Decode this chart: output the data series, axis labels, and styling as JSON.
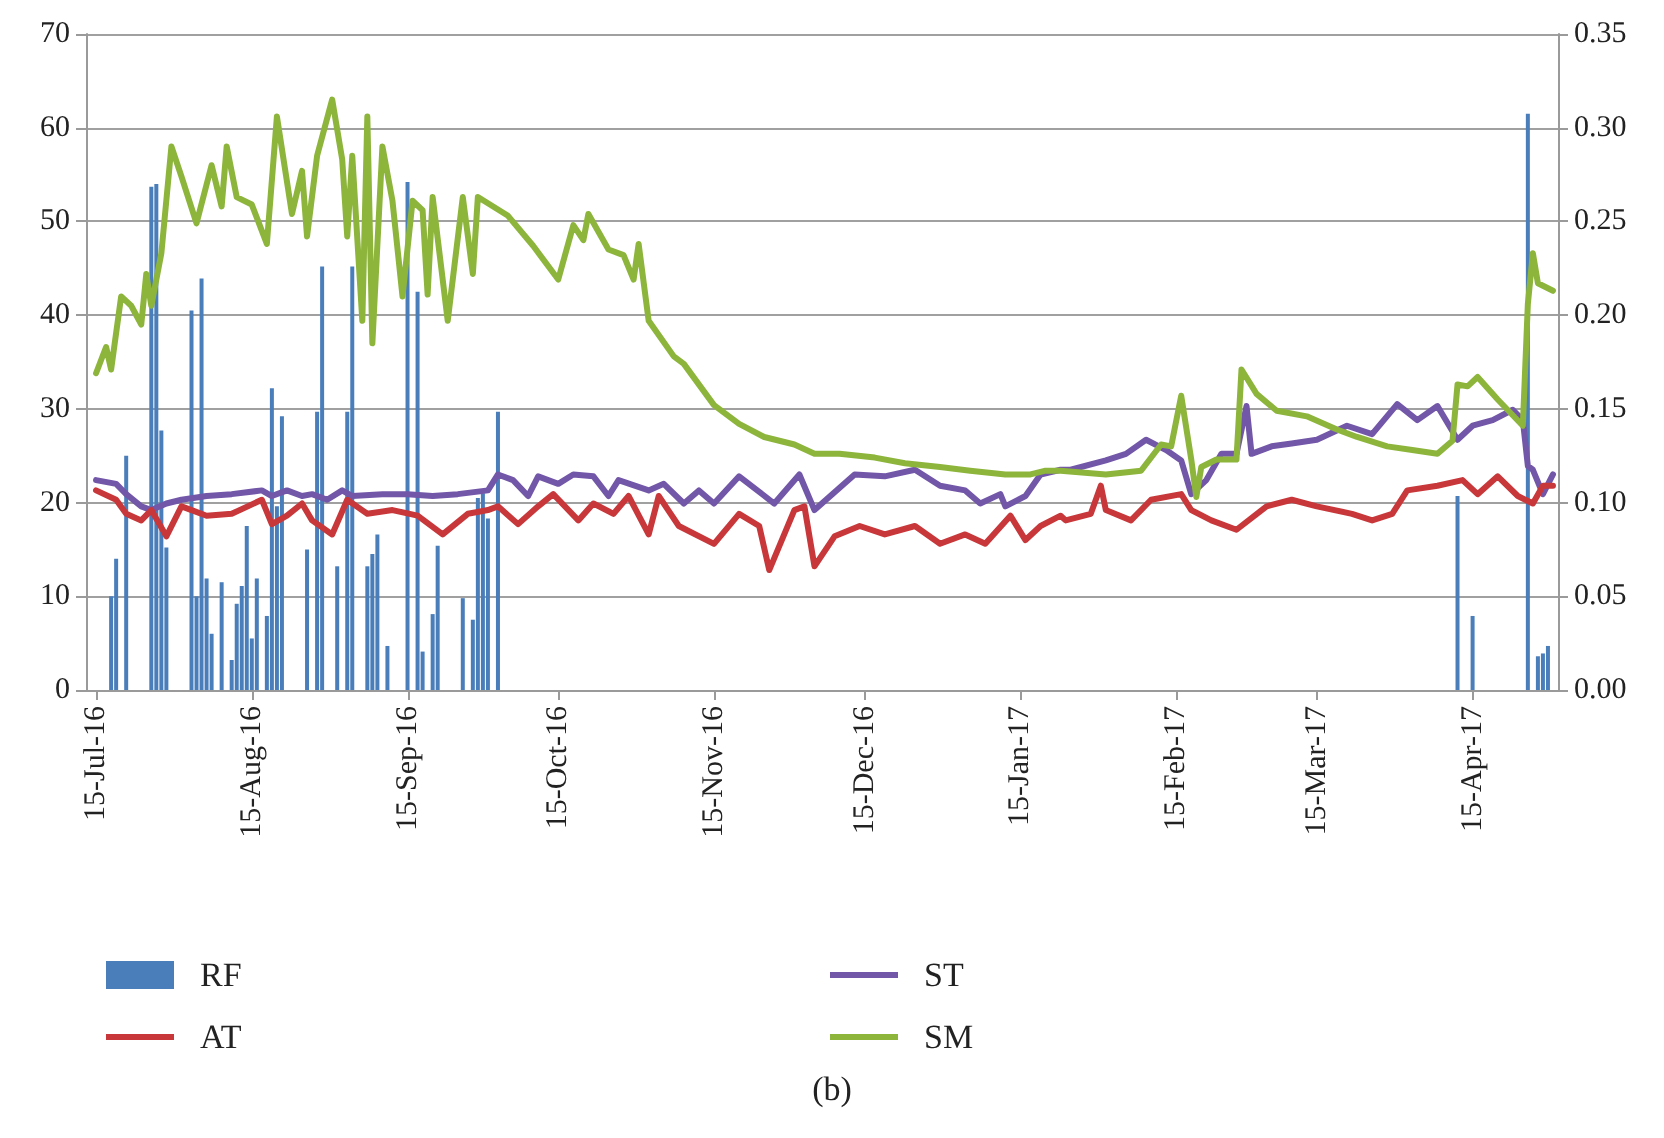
{
  "chart_data": {
    "type": "line",
    "xlim": [
      "2016-07-13",
      "2017-05-02"
    ],
    "xticks": [
      {
        "value": "2016-07-15",
        "label": "15-Jul-16"
      },
      {
        "value": "2016-08-15",
        "label": "15-Aug-16"
      },
      {
        "value": "2016-09-15",
        "label": "15-Sep-16"
      },
      {
        "value": "2016-10-15",
        "label": "15-Oct-16"
      },
      {
        "value": "2016-11-15",
        "label": "15-Nov-16"
      },
      {
        "value": "2016-12-15",
        "label": "15-Dec-16"
      },
      {
        "value": "2017-01-15",
        "label": "15-Jan-17"
      },
      {
        "value": "2017-02-15",
        "label": "15-Feb-17"
      },
      {
        "value": "2017-03-15",
        "label": "15-Mar-17"
      },
      {
        "value": "2017-04-15",
        "label": "15-Apr-17"
      }
    ],
    "ylim": [
      0,
      70
    ],
    "yticks": [
      0,
      10,
      20,
      30,
      40,
      50,
      60,
      70
    ],
    "y2lim": [
      0,
      0.35
    ],
    "y2ticks": [
      {
        "value": 0,
        "label": "0.00"
      },
      0.05,
      {
        "value": 0.1,
        "label": "0.10"
      },
      0.15,
      {
        "value": 0.2,
        "label": "0.20"
      },
      0.25,
      {
        "value": 0.3,
        "label": "0.30"
      },
      0.35
    ],
    "grid": "y",
    "legend": "bottom",
    "marker": "none",
    "line_style": "solid",
    "annotations": [
      "(b)"
    ],
    "series": [
      {
        "name": "RF",
        "type": "bar",
        "color": "#4a7ebb",
        "x": [
          "2016-07-18",
          "2016-07-19",
          "2016-07-21",
          "2016-07-26",
          "2016-07-27",
          "2016-07-28",
          "2016-07-29",
          "2016-08-03",
          "2016-08-04",
          "2016-08-05",
          "2016-08-06",
          "2016-08-07",
          "2016-08-09",
          "2016-08-11",
          "2016-08-12",
          "2016-08-13",
          "2016-08-14",
          "2016-08-15",
          "2016-08-16",
          "2016-08-18",
          "2016-08-19",
          "2016-08-20",
          "2016-08-21",
          "2016-08-26",
          "2016-08-28",
          "2016-08-29",
          "2016-09-01",
          "2016-09-03",
          "2016-09-04",
          "2016-09-07",
          "2016-09-08",
          "2016-09-09",
          "2016-09-11",
          "2016-09-15",
          "2016-09-17",
          "2016-09-18",
          "2016-09-20",
          "2016-09-21",
          "2016-09-26",
          "2016-09-28",
          "2016-09-29",
          "2016-09-30",
          "2016-10-01",
          "2016-10-03",
          "2017-04-12",
          "2017-04-15",
          "2017-04-26",
          "2017-04-28",
          "2017-04-29",
          "2017-04-30"
        ],
        "values": [
          10.0,
          14.0,
          25.0,
          53.7,
          54.0,
          27.7,
          15.2,
          40.5,
          10.0,
          43.9,
          11.9,
          6.0,
          11.5,
          3.2,
          9.2,
          11.1,
          17.5,
          5.5,
          11.9,
          7.9,
          32.2,
          19.6,
          29.2,
          15.0,
          29.7,
          45.2,
          13.2,
          29.7,
          45.2,
          13.2,
          14.5,
          16.6,
          4.7,
          54.2,
          42.5,
          4.1,
          8.1,
          15.4,
          9.8,
          7.5,
          20.5,
          21.0,
          18.3,
          29.7,
          20.7,
          7.9,
          61.5,
          3.6,
          3.9,
          4.7
        ]
      },
      {
        "name": "ST",
        "color": "#7256a8",
        "x": [
          "2016-07-15",
          "2016-07-19",
          "2016-07-21",
          "2016-07-24",
          "2016-07-26",
          "2016-07-29",
          "2016-08-01",
          "2016-08-06",
          "2016-08-11",
          "2016-08-17",
          "2016-08-19",
          "2016-08-22",
          "2016-08-25",
          "2016-08-27",
          "2016-08-30",
          "2016-09-02",
          "2016-09-04",
          "2016-09-10",
          "2016-09-15",
          "2016-09-20",
          "2016-09-25",
          "2016-10-01",
          "2016-10-03",
          "2016-10-06",
          "2016-10-09",
          "2016-10-11",
          "2016-10-15",
          "2016-10-18",
          "2016-10-22",
          "2016-10-25",
          "2016-10-27",
          "2016-11-02",
          "2016-11-05",
          "2016-11-09",
          "2016-11-12",
          "2016-11-15",
          "2016-11-20",
          "2016-11-27",
          "2016-12-02",
          "2016-12-05",
          "2016-12-13",
          "2016-12-19",
          "2016-12-25",
          "2016-12-30",
          "2017-01-04",
          "2017-01-07",
          "2017-01-11",
          "2017-01-12",
          "2017-01-16",
          "2017-01-19",
          "2017-01-23",
          "2017-01-25",
          "2017-02-01",
          "2017-02-05",
          "2017-02-09",
          "2017-02-13",
          "2017-02-16",
          "2017-02-18",
          "2017-02-21",
          "2017-02-24",
          "2017-02-27",
          "2017-03-01",
          "2017-03-02",
          "2017-03-06",
          "2017-03-10",
          "2017-03-15",
          "2017-03-21",
          "2017-03-26",
          "2017-03-31",
          "2017-04-04",
          "2017-04-08",
          "2017-04-12",
          "2017-04-15",
          "2017-04-19",
          "2017-04-23",
          "2017-04-25",
          "2017-04-26",
          "2017-04-27",
          "2017-04-29",
          "2017-05-01"
        ],
        "values": [
          22.4,
          22.0,
          20.9,
          19.6,
          19.2,
          19.9,
          20.3,
          20.7,
          20.9,
          21.3,
          20.7,
          21.3,
          20.7,
          20.9,
          20.3,
          21.3,
          20.7,
          20.9,
          20.9,
          20.7,
          20.9,
          21.3,
          23.0,
          22.4,
          20.7,
          22.8,
          22.0,
          23.0,
          22.8,
          20.7,
          22.4,
          21.3,
          22.0,
          19.9,
          21.3,
          19.9,
          22.8,
          19.9,
          23.0,
          19.2,
          23.0,
          22.8,
          23.5,
          21.8,
          21.3,
          19.9,
          20.9,
          19.6,
          20.7,
          23.0,
          23.5,
          23.5,
          24.5,
          25.2,
          26.7,
          25.6,
          24.5,
          20.9,
          22.4,
          25.2,
          25.2,
          30.3,
          25.2,
          26.0,
          26.3,
          26.7,
          28.2,
          27.3,
          30.5,
          28.8,
          30.3,
          26.7,
          28.2,
          28.8,
          29.9,
          28.8,
          23.9,
          23.5,
          20.9,
          23.0
        ]
      },
      {
        "name": "AT",
        "color": "#c8373a",
        "x": [
          "2016-07-15",
          "2016-07-19",
          "2016-07-21",
          "2016-07-24",
          "2016-07-26",
          "2016-07-29",
          "2016-08-01",
          "2016-08-06",
          "2016-08-11",
          "2016-08-17",
          "2016-08-19",
          "2016-08-22",
          "2016-08-25",
          "2016-08-27",
          "2016-08-31",
          "2016-09-03",
          "2016-09-07",
          "2016-09-12",
          "2016-09-17",
          "2016-09-22",
          "2016-09-27",
          "2016-10-01",
          "2016-10-03",
          "2016-10-07",
          "2016-10-11",
          "2016-10-14",
          "2016-10-19",
          "2016-10-22",
          "2016-10-26",
          "2016-10-29",
          "2016-11-02",
          "2016-11-04",
          "2016-11-08",
          "2016-11-15",
          "2016-11-20",
          "2016-11-24",
          "2016-11-26",
          "2016-12-01",
          "2016-12-03",
          "2016-12-05",
          "2016-12-09",
          "2016-12-14",
          "2016-12-19",
          "2016-12-25",
          "2016-12-30",
          "2017-01-04",
          "2017-01-08",
          "2017-01-13",
          "2017-01-16",
          "2017-01-19",
          "2017-01-23",
          "2017-01-24",
          "2017-01-29",
          "2017-01-31",
          "2017-02-01",
          "2017-02-06",
          "2017-02-10",
          "2017-02-16",
          "2017-02-18",
          "2017-02-22",
          "2017-02-27",
          "2017-03-05",
          "2017-03-10",
          "2017-03-15",
          "2017-03-22",
          "2017-03-26",
          "2017-03-30",
          "2017-04-02",
          "2017-04-08",
          "2017-04-13",
          "2017-04-16",
          "2017-04-20",
          "2017-04-24",
          "2017-04-27",
          "2017-04-29",
          "2017-05-01"
        ],
        "values": [
          21.3,
          20.3,
          18.8,
          18.1,
          19.2,
          16.4,
          19.6,
          18.6,
          18.8,
          20.3,
          17.7,
          18.6,
          19.9,
          18.1,
          16.6,
          20.3,
          18.8,
          19.2,
          18.6,
          16.6,
          18.8,
          19.2,
          19.6,
          17.7,
          19.6,
          20.9,
          18.1,
          19.9,
          18.8,
          20.7,
          16.6,
          20.7,
          17.5,
          15.6,
          18.8,
          17.5,
          12.8,
          19.2,
          19.6,
          13.2,
          16.4,
          17.5,
          16.6,
          17.5,
          15.6,
          16.6,
          15.6,
          18.6,
          16.0,
          17.5,
          18.6,
          18.1,
          18.8,
          21.8,
          19.2,
          18.1,
          20.3,
          20.9,
          19.2,
          18.1,
          17.1,
          19.6,
          20.3,
          19.6,
          18.8,
          18.1,
          18.8,
          21.3,
          21.8,
          22.4,
          20.9,
          22.8,
          20.7,
          19.9,
          21.8,
          21.8
        ]
      },
      {
        "name": "SM",
        "axis": "y2",
        "color": "#8db53c",
        "x": [
          "2016-07-15",
          "2016-07-17",
          "2016-07-18",
          "2016-07-20",
          "2016-07-22",
          "2016-07-24",
          "2016-07-25",
          "2016-07-26",
          "2016-07-28",
          "2016-07-30",
          "2016-08-01",
          "2016-08-04",
          "2016-08-07",
          "2016-08-09",
          "2016-08-10",
          "2016-08-12",
          "2016-08-15",
          "2016-08-18",
          "2016-08-20",
          "2016-08-23",
          "2016-08-25",
          "2016-08-26",
          "2016-08-28",
          "2016-08-31",
          "2016-09-02",
          "2016-09-03",
          "2016-09-04",
          "2016-09-06",
          "2016-09-07",
          "2016-09-08",
          "2016-09-10",
          "2016-09-12",
          "2016-09-14",
          "2016-09-16",
          "2016-09-18",
          "2016-09-19",
          "2016-09-20",
          "2016-09-23",
          "2016-09-26",
          "2016-09-28",
          "2016-09-29",
          "2016-10-05",
          "2016-10-10",
          "2016-10-15",
          "2016-10-18",
          "2016-10-20",
          "2016-10-21",
          "2016-10-25",
          "2016-10-28",
          "2016-10-30",
          "2016-10-31",
          "2016-11-02",
          "2016-11-07",
          "2016-11-09",
          "2016-11-15",
          "2016-11-20",
          "2016-11-25",
          "2016-12-01",
          "2016-12-05",
          "2016-12-10",
          "2016-12-17",
          "2016-12-23",
          "2016-12-30",
          "2017-01-05",
          "2017-01-12",
          "2017-01-17",
          "2017-01-20",
          "2017-01-23",
          "2017-02-01",
          "2017-02-08",
          "2017-02-12",
          "2017-02-14",
          "2017-02-16",
          "2017-02-18",
          "2017-02-19",
          "2017-02-20",
          "2017-02-23",
          "2017-02-27",
          "2017-02-28",
          "2017-03-03",
          "2017-03-07",
          "2017-03-13",
          "2017-03-19",
          "2017-03-23",
          "2017-03-29",
          "2017-04-03",
          "2017-04-08",
          "2017-04-11",
          "2017-04-12",
          "2017-04-14",
          "2017-04-16",
          "2017-04-20",
          "2017-04-25",
          "2017-04-26",
          "2017-04-27",
          "2017-04-28",
          "2017-05-01"
        ],
        "values": [
          0.169,
          0.183,
          0.171,
          0.21,
          0.205,
          0.195,
          0.222,
          0.205,
          0.233,
          0.29,
          0.274,
          0.249,
          0.28,
          0.258,
          0.29,
          0.263,
          0.259,
          0.238,
          0.306,
          0.254,
          0.277,
          0.242,
          0.285,
          0.315,
          0.283,
          0.242,
          0.285,
          0.197,
          0.306,
          0.185,
          0.29,
          0.261,
          0.21,
          0.261,
          0.256,
          0.211,
          0.263,
          0.197,
          0.263,
          0.222,
          0.263,
          0.253,
          0.237,
          0.219,
          0.248,
          0.24,
          0.254,
          0.235,
          0.232,
          0.219,
          0.238,
          0.197,
          0.178,
          0.174,
          0.152,
          0.142,
          0.135,
          0.131,
          0.126,
          0.126,
          0.124,
          0.121,
          0.119,
          0.117,
          0.115,
          0.115,
          0.117,
          0.117,
          0.115,
          0.117,
          0.131,
          0.13,
          0.157,
          0.123,
          0.103,
          0.119,
          0.123,
          0.123,
          0.171,
          0.158,
          0.149,
          0.146,
          0.139,
          0.135,
          0.13,
          0.128,
          0.126,
          0.133,
          0.163,
          0.162,
          0.167,
          0.155,
          0.141,
          0.206,
          0.233,
          0.217,
          0.213
        ]
      }
    ]
  }
}
